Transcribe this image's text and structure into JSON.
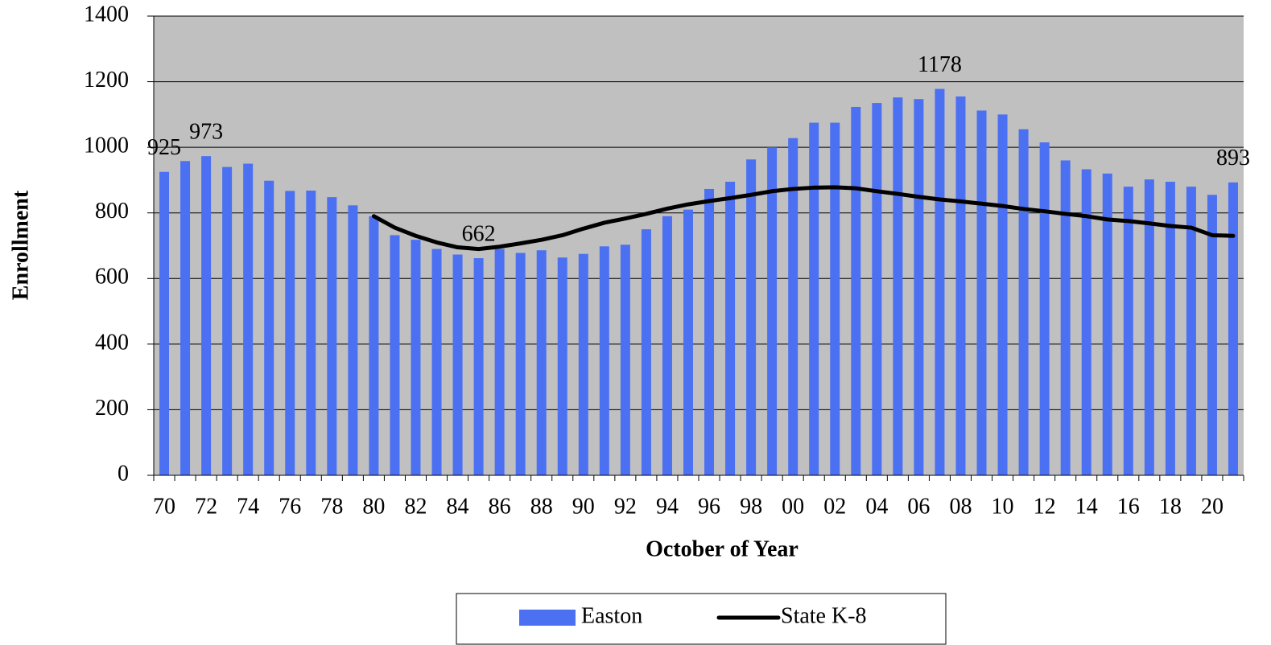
{
  "chart_data": {
    "type": "bar",
    "x_label": "October of Year",
    "y_label": "Enrollment",
    "categories": [
      "70",
      null,
      "72",
      null,
      "74",
      null,
      "76",
      null,
      "78",
      null,
      "80",
      null,
      "82",
      null,
      "84",
      null,
      "86",
      null,
      "88",
      null,
      "90",
      null,
      "92",
      null,
      "94",
      null,
      "96",
      null,
      "98",
      null,
      "00",
      null,
      "02",
      null,
      "04",
      null,
      "06",
      null,
      "08",
      null,
      "10",
      null,
      "12",
      null,
      "14",
      null,
      "16",
      null,
      "18",
      null,
      "20",
      null
    ],
    "series": [
      {
        "name": "Easton",
        "type": "bar",
        "color": "#4c70f2",
        "values": [
          925,
          958,
          973,
          940,
          950,
          898,
          867,
          868,
          848,
          823,
          790,
          732,
          718,
          690,
          673,
          662,
          690,
          678,
          686,
          664,
          675,
          698,
          703,
          750,
          790,
          810,
          873,
          895,
          963,
          1000,
          1028,
          1075,
          1075,
          1123,
          1135,
          1152,
          1147,
          1178,
          1155,
          1112,
          1100,
          1055,
          1015,
          960,
          933,
          920,
          880,
          902,
          895,
          880,
          855,
          893
        ],
        "value_labels": [
          "925",
          null,
          "973",
          null,
          null,
          null,
          null,
          null,
          null,
          null,
          null,
          null,
          null,
          null,
          null,
          "662",
          null,
          null,
          null,
          null,
          null,
          null,
          null,
          null,
          null,
          null,
          null,
          null,
          null,
          null,
          null,
          null,
          null,
          null,
          null,
          null,
          null,
          "1178",
          null,
          null,
          null,
          null,
          null,
          null,
          null,
          null,
          null,
          null,
          null,
          null,
          null,
          "893"
        ]
      },
      {
        "name": "State K-8",
        "type": "line",
        "color": "#000000",
        "values": [
          null,
          null,
          null,
          null,
          null,
          null,
          null,
          null,
          null,
          null,
          790,
          755,
          730,
          710,
          695,
          690,
          697,
          707,
          718,
          732,
          752,
          770,
          783,
          797,
          813,
          826,
          836,
          845,
          855,
          866,
          873,
          877,
          878,
          875,
          866,
          858,
          849,
          841,
          835,
          828,
          821,
          812,
          805,
          797,
          790,
          780,
          775,
          768,
          760,
          755,
          732,
          730
        ]
      }
    ],
    "ylim": [
      0,
      1400
    ],
    "yticks": [
      0,
      200,
      400,
      600,
      800,
      1000,
      1200,
      1400
    ],
    "grid": true,
    "plot_background": "#c0c0c0",
    "legend": "bottom"
  }
}
